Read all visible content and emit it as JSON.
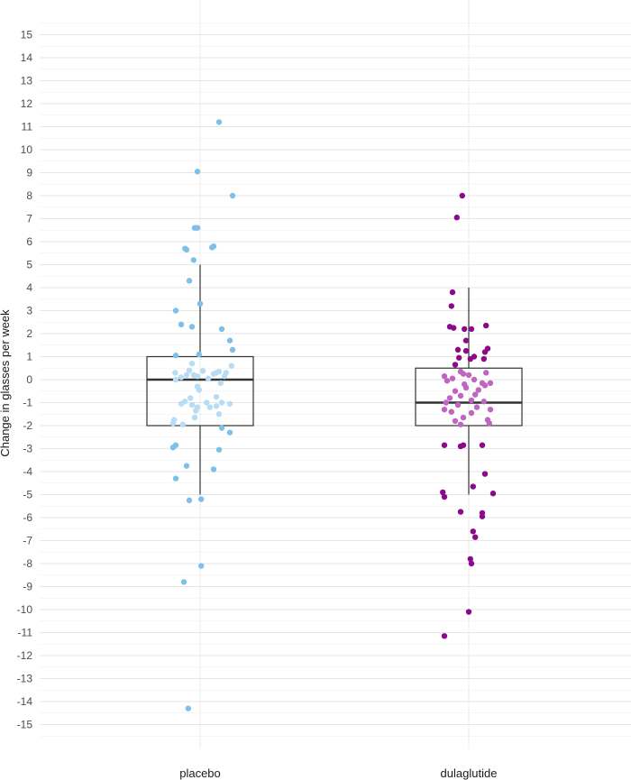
{
  "chart_data": {
    "type": "box",
    "ylabel": "Change in glasses per week",
    "xlabel": "",
    "title": "",
    "ylim": [
      -16,
      16.3
    ],
    "yticks": [
      15,
      14,
      13,
      12,
      11,
      10,
      9,
      8,
      7,
      6,
      5,
      4,
      3,
      2,
      1,
      0,
      -1,
      -2,
      -3,
      -4,
      -5,
      -6,
      -7,
      -8,
      -9,
      -10,
      -11,
      -12,
      -13,
      -14,
      -15
    ],
    "grid": true,
    "legend": "none",
    "categories": [
      "placebo",
      "dulaglutide"
    ],
    "series": [
      {
        "category": "placebo",
        "box": {
          "whisker_low": -5,
          "q1": -2,
          "median": 0,
          "q3": 1,
          "whisker_high": 5
        },
        "color_outer": "#7fbfe9",
        "color_inner": "#b7dcf3",
        "points": [
          [
            0.35,
            11.2
          ],
          [
            -0.05,
            9.05
          ],
          [
            0.6,
            8.0
          ],
          [
            -0.1,
            6.6
          ],
          [
            -0.05,
            6.6
          ],
          [
            -0.28,
            5.7
          ],
          [
            -0.25,
            5.65
          ],
          [
            0.22,
            5.75
          ],
          [
            0.25,
            5.8
          ],
          [
            -0.12,
            5.2
          ],
          [
            -0.2,
            4.3
          ],
          [
            0.0,
            3.3
          ],
          [
            -0.45,
            3.0
          ],
          [
            -0.35,
            2.4
          ],
          [
            -0.15,
            2.3
          ],
          [
            0.4,
            2.2
          ],
          [
            0.55,
            1.7
          ],
          [
            0.6,
            1.3
          ],
          [
            -0.45,
            1.05
          ],
          [
            -0.02,
            1.1
          ],
          [
            -0.15,
            0.7
          ],
          [
            0.58,
            0.6
          ],
          [
            -0.2,
            0.4
          ],
          [
            0.05,
            0.38
          ],
          [
            0.35,
            0.35
          ],
          [
            0.48,
            0.3
          ],
          [
            -0.46,
            0.3
          ],
          [
            0.25,
            0.25
          ],
          [
            0.3,
            0.3
          ],
          [
            -0.12,
            0.2
          ],
          [
            0.45,
            0.15
          ],
          [
            -0.35,
            0.1
          ],
          [
            -0.25,
            0.2
          ],
          [
            -0.05,
            0.15
          ],
          [
            0.15,
            0.05
          ],
          [
            -0.45,
            0.0
          ],
          [
            0.38,
            -0.15
          ],
          [
            -0.05,
            -0.3
          ],
          [
            -0.02,
            -0.45
          ],
          [
            0.3,
            -0.75
          ],
          [
            -0.18,
            -0.8
          ],
          [
            -0.28,
            -0.95
          ],
          [
            0.12,
            -1.0
          ],
          [
            0.4,
            -1.0
          ],
          [
            0.55,
            -1.05
          ],
          [
            -0.35,
            -1.05
          ],
          [
            -0.15,
            -1.1
          ],
          [
            0.3,
            -1.15
          ],
          [
            -0.05,
            -1.2
          ],
          [
            0.18,
            -1.2
          ],
          [
            -0.08,
            -1.35
          ],
          [
            0.35,
            -1.5
          ],
          [
            -0.1,
            -1.65
          ],
          [
            -0.48,
            -1.75
          ],
          [
            -0.5,
            -1.9
          ],
          [
            -0.32,
            -1.95
          ],
          [
            0.4,
            -2.1
          ],
          [
            0.55,
            -2.3
          ],
          [
            -0.45,
            -2.85
          ],
          [
            -0.5,
            -2.95
          ],
          [
            0.35,
            -3.05
          ],
          [
            -0.25,
            -3.75
          ],
          [
            0.25,
            -3.9
          ],
          [
            -0.45,
            -4.3
          ],
          [
            -0.2,
            -5.25
          ],
          [
            0.02,
            -5.2
          ],
          [
            0.02,
            -8.1
          ],
          [
            -0.3,
            -8.8
          ],
          [
            -0.22,
            -14.3
          ]
        ]
      },
      {
        "category": "dulaglutide",
        "box": {
          "whisker_low": -5,
          "q1": -2,
          "median": -1,
          "q3": 0.5,
          "whisker_high": 4
        },
        "color_outer": "#8b0a8b",
        "color_inner": "#c065c0",
        "points": [
          [
            -0.12,
            8.0
          ],
          [
            -0.22,
            7.05
          ],
          [
            -0.3,
            3.8
          ],
          [
            -0.32,
            3.2
          ],
          [
            -0.35,
            2.3
          ],
          [
            -0.28,
            2.25
          ],
          [
            -0.08,
            2.2
          ],
          [
            0.05,
            2.2
          ],
          [
            0.32,
            2.35
          ],
          [
            -0.05,
            1.7
          ],
          [
            -0.2,
            1.3
          ],
          [
            0.35,
            1.35
          ],
          [
            -0.05,
            1.25
          ],
          [
            0.3,
            1.2
          ],
          [
            0.1,
            1.0
          ],
          [
            -0.18,
            0.95
          ],
          [
            0.03,
            0.9
          ],
          [
            0.28,
            0.9
          ],
          [
            -0.25,
            0.65
          ],
          [
            -0.15,
            0.35
          ],
          [
            0.32,
            0.3
          ],
          [
            -0.1,
            0.25
          ],
          [
            0.0,
            0.2
          ],
          [
            -0.45,
            0.15
          ],
          [
            -0.3,
            0.05
          ],
          [
            0.1,
            0.0
          ],
          [
            -0.4,
            -0.05
          ],
          [
            0.4,
            -0.15
          ],
          [
            0.25,
            -0.15
          ],
          [
            -0.08,
            -0.2
          ],
          [
            0.3,
            -0.25
          ],
          [
            -0.05,
            -0.35
          ],
          [
            0.18,
            -0.45
          ],
          [
            -0.25,
            -0.5
          ],
          [
            0.12,
            -0.65
          ],
          [
            -0.15,
            -0.7
          ],
          [
            -0.35,
            -0.8
          ],
          [
            0.05,
            -0.9
          ],
          [
            -0.42,
            -1.0
          ],
          [
            0.28,
            -0.95
          ],
          [
            -0.2,
            -1.1
          ],
          [
            0.15,
            -1.2
          ],
          [
            -0.45,
            -1.3
          ],
          [
            0.4,
            -1.3
          ],
          [
            -0.32,
            -1.4
          ],
          [
            0.05,
            -1.45
          ],
          [
            -0.1,
            -1.65
          ],
          [
            0.35,
            -1.75
          ],
          [
            -0.25,
            -1.8
          ],
          [
            0.38,
            -1.9
          ],
          [
            -0.15,
            -1.95
          ],
          [
            -0.45,
            -2.85
          ],
          [
            -0.1,
            -2.85
          ],
          [
            -0.15,
            -2.9
          ],
          [
            0.25,
            -2.85
          ],
          [
            0.3,
            -4.1
          ],
          [
            0.08,
            -4.65
          ],
          [
            -0.48,
            -4.9
          ],
          [
            -0.45,
            -5.1
          ],
          [
            0.45,
            -4.95
          ],
          [
            -0.15,
            -5.75
          ],
          [
            0.25,
            -5.8
          ],
          [
            0.25,
            -5.95
          ],
          [
            0.08,
            -6.6
          ],
          [
            0.12,
            -6.85
          ],
          [
            0.03,
            -7.8
          ],
          [
            0.05,
            -8.0
          ],
          [
            0.0,
            -10.1
          ],
          [
            -0.45,
            -11.15
          ]
        ]
      }
    ]
  }
}
